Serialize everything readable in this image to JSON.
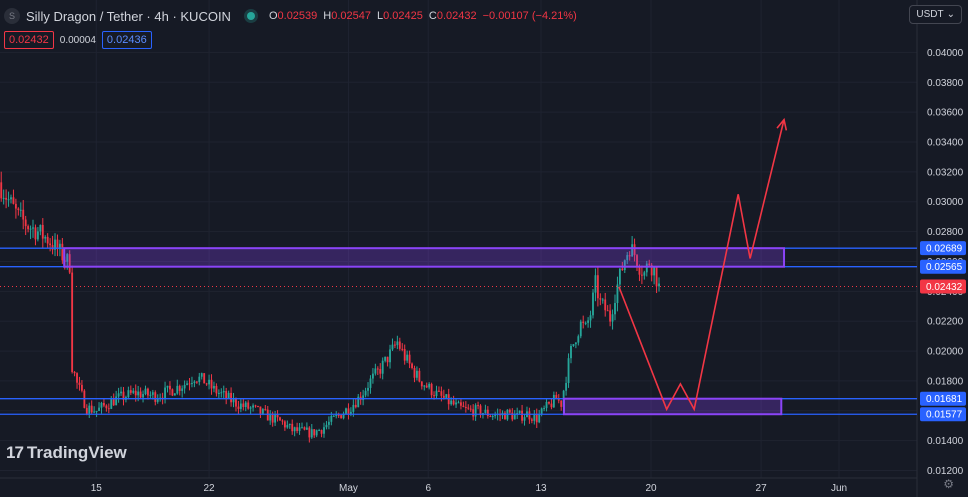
{
  "header": {
    "symbol_icon": "S",
    "title": "Silly Dragon / Tether · 4h · KUCOIN",
    "ohlc": [
      {
        "k": "O",
        "v": "0.02539"
      },
      {
        "k": "H",
        "v": "0.02547"
      },
      {
        "k": "L",
        "v": "0.02425"
      },
      {
        "k": "C",
        "v": "0.02432"
      }
    ],
    "change": "−0.00107 (−4.21%)",
    "sell_price": "0.02432",
    "spread": "0.00004",
    "buy_price": "0.02436",
    "currency": "USDT"
  },
  "brand": {
    "mark": "17",
    "name": "TradingView"
  },
  "colors": {
    "background": "#161a25",
    "up": "#26a69a",
    "down": "#f23645",
    "level_line": "#2962ff",
    "zone_border": "#8b44f7",
    "forecast": "#f23645",
    "grid": "#1f2330",
    "axis_text": "#d1d4dc"
  },
  "chart_data": {
    "type": "candlestick",
    "timeframe": "4h",
    "symbol": "Silly Dragon / Tether",
    "exchange": "KUCOIN",
    "y_ticks": [
      0.012,
      0.014,
      0.016,
      0.018,
      0.02,
      0.022,
      0.024,
      0.026,
      0.028,
      0.03,
      0.032,
      0.034,
      0.036,
      0.038,
      0.04
    ],
    "y_tick_labels": [
      "0.01200",
      "0.01400",
      "0.01600",
      "0.01800",
      "0.02000",
      "0.02200",
      "0.02400",
      "0.02600",
      "0.02800",
      "0.03000",
      "0.03200",
      "0.03400",
      "0.03600",
      "0.03800",
      "0.04000"
    ],
    "ylim": [
      0.0115,
      0.0415
    ],
    "x_labels": [
      "15",
      "22",
      "May",
      "6",
      "13",
      "20",
      "27",
      "Jun"
    ],
    "price_path": [
      [
        0,
        0.0313
      ],
      [
        4,
        0.0301
      ],
      [
        8,
        0.029
      ],
      [
        12,
        0.0284
      ],
      [
        16,
        0.028
      ],
      [
        20,
        0.0275
      ],
      [
        24,
        0.0268
      ],
      [
        27,
        0.0262
      ],
      [
        29,
        0.0258
      ],
      [
        30,
        0.019
      ],
      [
        32,
        0.0178
      ],
      [
        34,
        0.017
      ],
      [
        36,
        0.0162
      ],
      [
        40,
        0.016
      ],
      [
        44,
        0.0164
      ],
      [
        48,
        0.0168
      ],
      [
        52,
        0.017
      ],
      [
        56,
        0.0172
      ],
      [
        60,
        0.0171
      ],
      [
        64,
        0.017
      ],
      [
        68,
        0.0172
      ],
      [
        72,
        0.0175
      ],
      [
        76,
        0.0178
      ],
      [
        80,
        0.0183
      ],
      [
        84,
        0.018
      ],
      [
        88,
        0.0174
      ],
      [
        92,
        0.017
      ],
      [
        96,
        0.0166
      ],
      [
        100,
        0.0163
      ],
      [
        104,
        0.0161
      ],
      [
        108,
        0.0158
      ],
      [
        112,
        0.0155
      ],
      [
        116,
        0.0152
      ],
      [
        120,
        0.0147
      ],
      [
        124,
        0.0146
      ],
      [
        128,
        0.0145
      ],
      [
        132,
        0.0148
      ],
      [
        136,
        0.0153
      ],
      [
        140,
        0.0158
      ],
      [
        144,
        0.0163
      ],
      [
        148,
        0.017
      ],
      [
        152,
        0.018
      ],
      [
        156,
        0.0188
      ],
      [
        160,
        0.0198
      ],
      [
        163,
        0.0206
      ],
      [
        166,
        0.0196
      ],
      [
        169,
        0.0188
      ],
      [
        172,
        0.0181
      ],
      [
        176,
        0.0175
      ],
      [
        180,
        0.017
      ],
      [
        184,
        0.0166
      ],
      [
        188,
        0.0162
      ],
      [
        192,
        0.016
      ],
      [
        196,
        0.016
      ],
      [
        200,
        0.0158
      ],
      [
        204,
        0.0157
      ],
      [
        208,
        0.0158
      ],
      [
        212,
        0.0156
      ],
      [
        216,
        0.0158
      ],
      [
        220,
        0.0155
      ],
      [
        224,
        0.0162
      ],
      [
        228,
        0.0168
      ],
      [
        230,
        0.0165
      ],
      [
        232,
        0.0183
      ],
      [
        234,
        0.02
      ],
      [
        236,
        0.021
      ],
      [
        238,
        0.0218
      ],
      [
        240,
        0.0215
      ],
      [
        242,
        0.0225
      ],
      [
        244,
        0.0245
      ],
      [
        246,
        0.0232
      ],
      [
        248,
        0.0228
      ],
      [
        250,
        0.0222
      ],
      [
        252,
        0.0238
      ],
      [
        254,
        0.025
      ],
      [
        256,
        0.0262
      ],
      [
        258,
        0.027
      ],
      [
        260,
        0.0265
      ],
      [
        262,
        0.0257
      ],
      [
        264,
        0.0252
      ],
      [
        266,
        0.026
      ],
      [
        268,
        0.0254
      ],
      [
        270,
        0.0243
      ]
    ],
    "levels": [
      {
        "value": 0.02689,
        "label": "0.02689"
      },
      {
        "value": 0.02565,
        "label": "0.02565"
      },
      {
        "value": 0.01681,
        "label": "0.01681"
      },
      {
        "value": 0.01577,
        "label": "0.01577"
      }
    ],
    "current_price": {
      "value": 0.02432,
      "label": "0.02432"
    },
    "zones": [
      {
        "top": 0.02689,
        "bottom": 0.02565,
        "x_from": 0.07,
        "x_to": 0.855
      },
      {
        "top": 0.01681,
        "bottom": 0.01577,
        "x_from": 0.615,
        "x_to": 0.852
      }
    ],
    "forecast_path": [
      [
        0.675,
        0.0243
      ],
      [
        0.727,
        0.0161
      ],
      [
        0.742,
        0.0178
      ],
      [
        0.757,
        0.0161
      ],
      [
        0.805,
        0.0305
      ],
      [
        0.818,
        0.0262
      ],
      [
        0.855,
        0.0355
      ]
    ],
    "grid": true
  }
}
